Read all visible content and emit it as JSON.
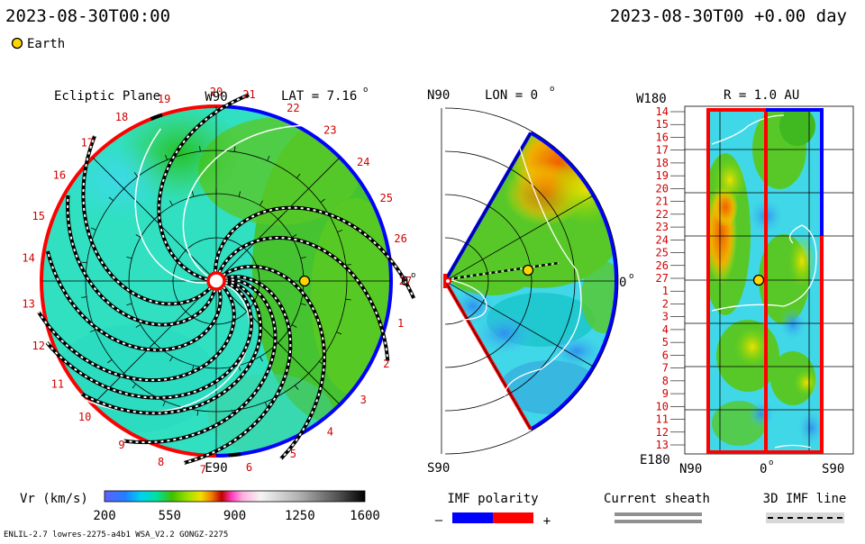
{
  "header": {
    "date_left": "2023-08-30T00:00",
    "date_right": "2023-08-30T00 +0.00 day",
    "legend_earth": "Earth"
  },
  "panel1": {
    "title": "Ecliptic Plane",
    "top_label": "W90",
    "bottom_label": "E90",
    "right_label": "0",
    "lat_label": "LAT = 7.16",
    "lat_unit": "o"
  },
  "panel2": {
    "top_label": "N90",
    "bottom_label": "S90",
    "lon_label": "LON = 0",
    "lon_unit": "o",
    "right_label": "0",
    "right_unit": "o"
  },
  "panel3": {
    "r_label": "R = 1.0 AU",
    "top_label": "W180",
    "bottom_label": "E180",
    "x_left": "N90",
    "x_mid": "0",
    "x_mid_unit": "o",
    "x_right": "S90"
  },
  "colorbar": {
    "label": "Vr (km/s)",
    "ticks": [
      "200",
      "550",
      "900",
      "1250",
      "1600"
    ]
  },
  "legend": {
    "imf_title": "IMF polarity",
    "imf_minus": "–",
    "imf_plus": "+",
    "sheath_title": "Current sheath",
    "imf3d_title": "3D IMF line"
  },
  "footer": {
    "model_text": "ENLIL-2.7 lowres-2275-a4b1 WSA_V2.2 GONGZ-2275"
  },
  "chart_data": [
    {
      "type": "heatmap",
      "title": "Ecliptic Plane",
      "description_quantity": "Vr (km/s)",
      "carrington_labels": [
        "20",
        "21",
        "22",
        "23",
        "24",
        "25",
        "26",
        "27",
        "1",
        "2",
        "3",
        "4",
        "5",
        "6",
        "7",
        "8",
        "9",
        "10",
        "11",
        "12",
        "13",
        "14",
        "15",
        "16",
        "17",
        "18",
        "19"
      ],
      "carrington_angles_deg": [
        90,
        80,
        66,
        53,
        39,
        26,
        13,
        0,
        -13,
        -26,
        -39,
        -53,
        -66,
        -80,
        -94,
        -107,
        -120,
        -134,
        -147,
        -160,
        -173,
        173,
        160,
        146,
        133,
        120,
        106
      ],
      "earth": {
        "angle_deg": 0,
        "radius_au": 1.0
      },
      "vr_range": [
        200,
        1600
      ]
    },
    {
      "type": "heatmap",
      "title": "",
      "y_labels": [
        "N90",
        "S90"
      ],
      "x_label_end": "0",
      "sector_deg": [
        -60,
        60
      ],
      "earth": {
        "lat_deg": 0,
        "radius_au": 1.0
      }
    },
    {
      "type": "heatmap",
      "title": "R = 1.0 AU",
      "x_labels": [
        "N90",
        "0",
        "S90"
      ],
      "y_labels": [
        "14",
        "15",
        "16",
        "17",
        "18",
        "19",
        "20",
        "21",
        "22",
        "23",
        "24",
        "25",
        "26",
        "27",
        "1",
        "2",
        "3",
        "4",
        "5",
        "6",
        "7",
        "8",
        "9",
        "10",
        "11",
        "12",
        "13"
      ],
      "y_top": "W180",
      "y_bottom": "E180",
      "earth": {
        "lat_deg": 0,
        "carrington": "27"
      }
    }
  ],
  "colors": {
    "positive_polarity": "#ff0000",
    "negative_polarity": "#0000ff",
    "earth_fill": "#ffd700",
    "label_red": "#d00000"
  }
}
